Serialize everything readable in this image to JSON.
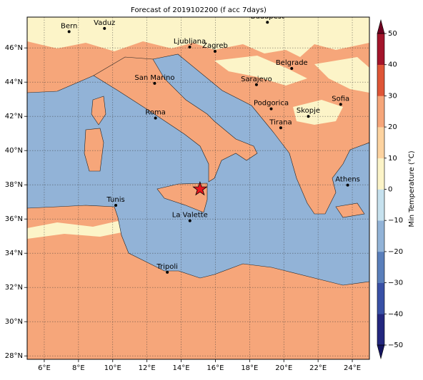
{
  "title": "Forecast of 2019102200 (f acc 7days)",
  "map": {
    "xlim": [
      5,
      25
    ],
    "ylim": [
      27.8,
      47.8
    ],
    "xticks": [
      {
        "value": 6,
        "label": "6°E"
      },
      {
        "value": 8,
        "label": "8°E"
      },
      {
        "value": 10,
        "label": "10°E"
      },
      {
        "value": 12,
        "label": "12°E"
      },
      {
        "value": 14,
        "label": "14°E"
      },
      {
        "value": 16,
        "label": "16°E"
      },
      {
        "value": 18,
        "label": "18°E"
      },
      {
        "value": 20,
        "label": "20°E"
      },
      {
        "value": 22,
        "label": "22°E"
      },
      {
        "value": 24,
        "label": "24°E"
      }
    ],
    "yticks": [
      {
        "value": 28,
        "label": "28°N"
      },
      {
        "value": 30,
        "label": "30°N"
      },
      {
        "value": 32,
        "label": "32°N"
      },
      {
        "value": 34,
        "label": "34°N"
      },
      {
        "value": 36,
        "label": "36°N"
      },
      {
        "value": 38,
        "label": "38°N"
      },
      {
        "value": 40,
        "label": "40°N"
      },
      {
        "value": 42,
        "label": "42°N"
      },
      {
        "value": 44,
        "label": "44°N"
      },
      {
        "value": 46,
        "label": "46°N"
      }
    ],
    "grid": true,
    "colors": {
      "sea": "#92b3d7",
      "land": "#f6a67a",
      "pale": "#fcf4c8"
    }
  },
  "cities": [
    {
      "name": "Bern",
      "lon": 7.45,
      "lat": 46.95
    },
    {
      "name": "Vaduz",
      "lon": 9.52,
      "lat": 47.14
    },
    {
      "name": "Budapest",
      "lon": 19.04,
      "lat": 47.5
    },
    {
      "name": "Ljubljana",
      "lon": 14.5,
      "lat": 46.05
    },
    {
      "name": "Zagreb",
      "lon": 15.98,
      "lat": 45.8
    },
    {
      "name": "Belgrade",
      "lon": 20.46,
      "lat": 44.8
    },
    {
      "name": "Sarajevo",
      "lon": 18.4,
      "lat": 43.85
    },
    {
      "name": "San Marino",
      "lon": 12.45,
      "lat": 43.93
    },
    {
      "name": "Roma",
      "lon": 12.5,
      "lat": 41.9
    },
    {
      "name": "Podgorica",
      "lon": 19.26,
      "lat": 42.44
    },
    {
      "name": "Sofia",
      "lon": 23.32,
      "lat": 42.7
    },
    {
      "name": "Skopje",
      "lon": 21.43,
      "lat": 42.0
    },
    {
      "name": "Tirana",
      "lon": 19.82,
      "lat": 41.33
    },
    {
      "name": "Athens",
      "lon": 23.73,
      "lat": 37.98
    },
    {
      "name": "Tunis",
      "lon": 10.18,
      "lat": 36.8
    },
    {
      "name": "La Valette",
      "lon": 14.51,
      "lat": 35.9
    },
    {
      "name": "Tripoli",
      "lon": 13.19,
      "lat": 32.89
    }
  ],
  "marker": {
    "lon": 15.1,
    "lat": 37.75,
    "color": "#e8141c"
  },
  "colorbar": {
    "label": "Min Temperature (°C)",
    "ylim": [
      -50,
      50
    ],
    "yticks": [
      {
        "value": -50,
        "label": "−50"
      },
      {
        "value": -40,
        "label": "−40"
      },
      {
        "value": -30,
        "label": "−30"
      },
      {
        "value": -20,
        "label": "−20"
      },
      {
        "value": -10,
        "label": "−10"
      },
      0,
      10,
      20,
      30,
      40,
      50
    ],
    "colors": [
      "#23277f",
      "#3850a6",
      "#5a7fbb",
      "#92b3d7",
      "#c6e1ee",
      "#fcf4c8",
      "#fdd3a0",
      "#f6a67a",
      "#de5537",
      "#a3152b"
    ],
    "under": "#141460",
    "over": "#6e0020"
  }
}
